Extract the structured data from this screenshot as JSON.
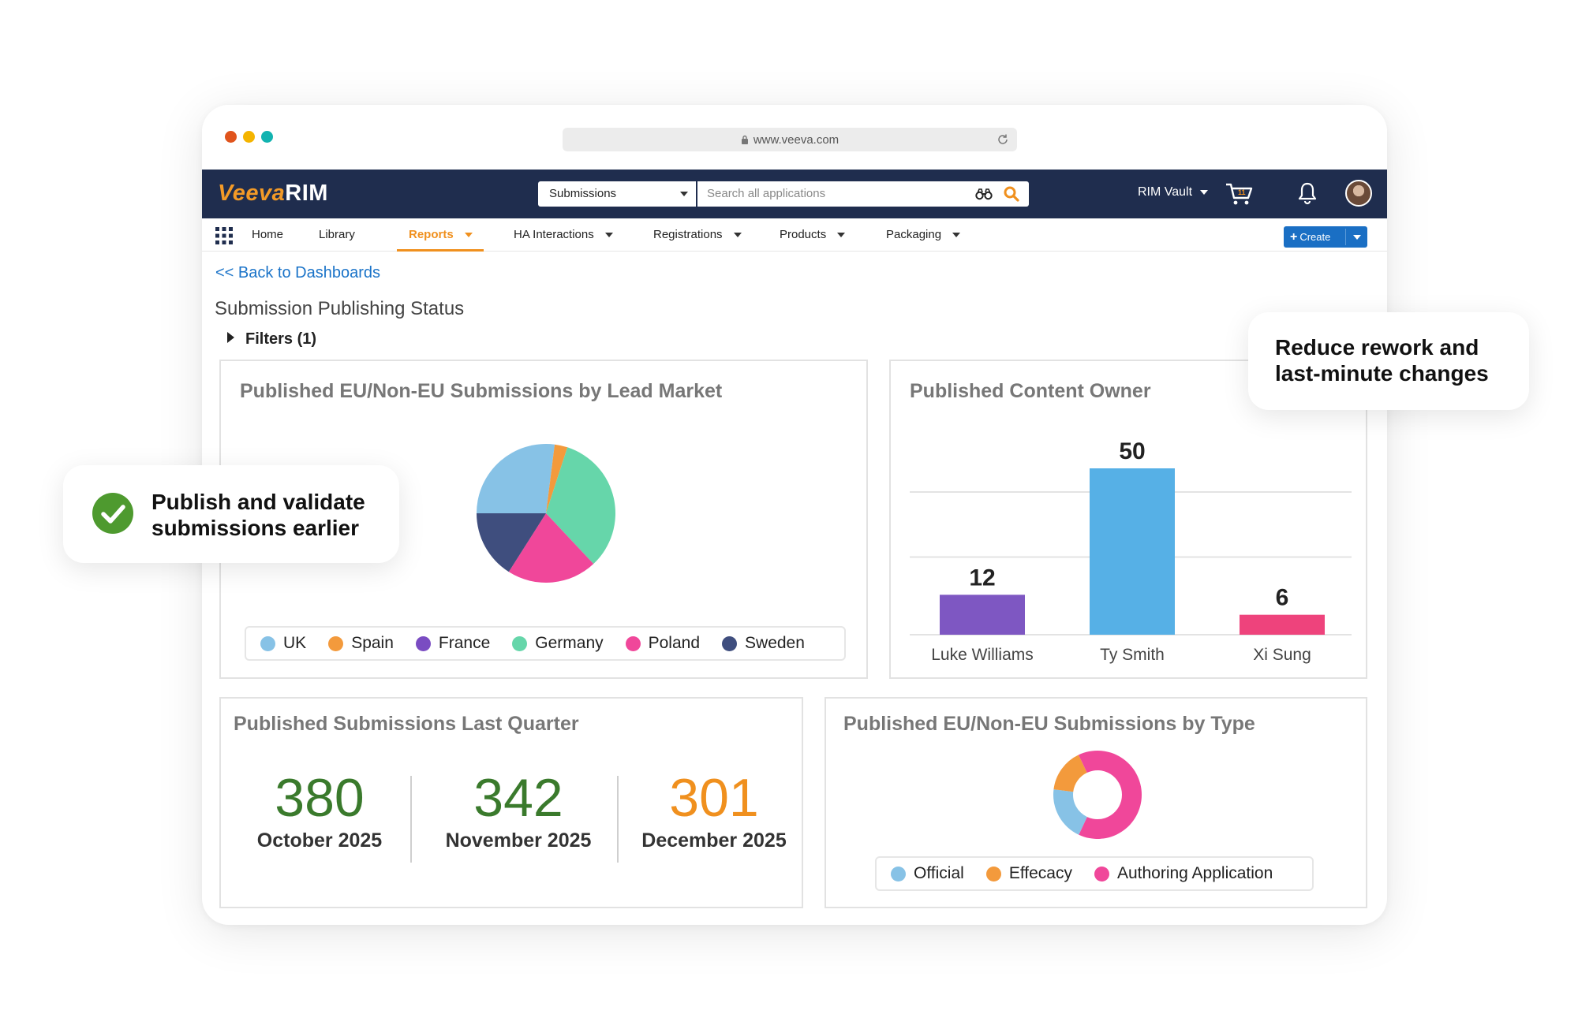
{
  "browser": {
    "url": "www.veeva.com"
  },
  "header": {
    "logo_veeva": "Veeva",
    "logo_rim": "RIM",
    "search_scope": "Submissions",
    "search_placeholder": "Search all applications",
    "vault_name": "RIM Vault",
    "cart_count": "11"
  },
  "nav": {
    "items": [
      {
        "label": "Home"
      },
      {
        "label": "Library"
      },
      {
        "label": "Reports"
      },
      {
        "label": "HA Interactions"
      },
      {
        "label": "Registrations"
      },
      {
        "label": "Products"
      },
      {
        "label": "Packaging"
      }
    ],
    "active": "Reports",
    "create_label": "Create"
  },
  "page": {
    "back_link": "<< Back to Dashboards",
    "title": "Submission Publishing Status",
    "filters_label": "Filters (1)"
  },
  "colors": {
    "navy": "#1f2d4e",
    "accent_orange": "#f0901e",
    "link_blue": "#1a73c8",
    "kpi_green": "#3a7a2c",
    "kpi_orange": "#f0901e"
  },
  "panels": {
    "lead_market": {
      "title": "Published EU/Non-EU Submissions by Lead Market"
    },
    "content_owner": {
      "title": "Published Content Owner"
    },
    "last_quarter": {
      "title": "Published Submissions Last Quarter",
      "kpis": [
        {
          "value": "380",
          "label": "October 2025",
          "color": "#3a7a2c"
        },
        {
          "value": "342",
          "label": "November 2025",
          "color": "#3a7a2c"
        },
        {
          "value": "301",
          "label": "December 2025",
          "color": "#f0901e"
        }
      ]
    },
    "by_type": {
      "title": "Published EU/Non-EU Submissions by Type"
    }
  },
  "chart_data": [
    {
      "type": "pie",
      "categories": [
        "UK",
        "Spain",
        "France",
        "Germany",
        "Poland",
        "Sweden"
      ],
      "values": [
        27,
        3,
        0,
        33,
        21,
        16
      ],
      "colors": [
        "#87c2e6",
        "#f39a3c",
        "#7a4cc2",
        "#66d6aa",
        "#f0479a",
        "#3f4e7e"
      ],
      "legend_position": "bottom"
    },
    {
      "type": "bar",
      "categories": [
        "Luke Williams",
        "Ty Smith",
        "Xi Sung"
      ],
      "values": [
        12,
        50,
        6
      ],
      "data_labels": [
        "12",
        "50",
        "6"
      ],
      "colors": [
        "#7e57c2",
        "#56b0e6",
        "#ee437c"
      ],
      "ylim": [
        0,
        50
      ],
      "grid": true
    },
    {
      "type": "pie",
      "donut": true,
      "categories": [
        "Official",
        "Effecacy",
        "Authoring Application"
      ],
      "values": [
        20,
        16,
        64
      ],
      "colors": [
        "#87c2e6",
        "#f39a3c",
        "#f0479a"
      ],
      "legend_position": "bottom"
    }
  ],
  "callouts": {
    "left": "Publish and validate submissions earlier",
    "right": "Reduce rework and last-minute changes"
  }
}
